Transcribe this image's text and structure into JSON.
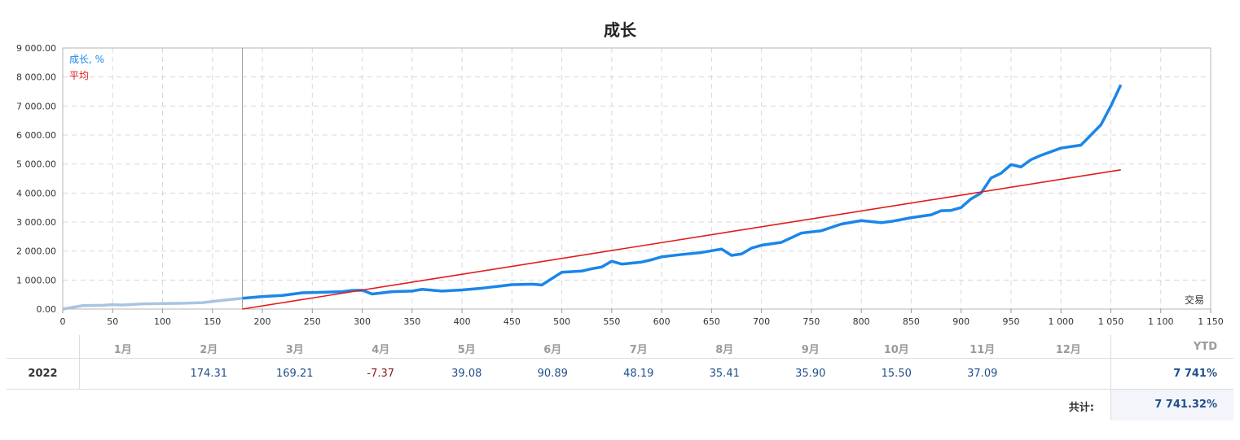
{
  "chart_data": {
    "type": "line",
    "title": "成长",
    "xlabel": "交易",
    "xlim": [
      0,
      1150
    ],
    "ylim": [
      0,
      9000
    ],
    "x_ticks": [
      0,
      50,
      100,
      150,
      200,
      250,
      300,
      350,
      400,
      450,
      500,
      550,
      600,
      650,
      700,
      750,
      800,
      850,
      900,
      950,
      1000,
      1050,
      1100,
      1150
    ],
    "x_tick_labels": [
      "0",
      "50",
      "100",
      "150",
      "200",
      "250",
      "300",
      "350",
      "400",
      "450",
      "500",
      "550",
      "600",
      "650",
      "700",
      "750",
      "800",
      "850",
      "900",
      "950",
      "1 000",
      "1 050",
      "1 100",
      "1 150"
    ],
    "y_ticks": [
      0,
      1000,
      2000,
      3000,
      4000,
      5000,
      6000,
      7000,
      8000,
      9000
    ],
    "y_tick_labels": [
      "0.00",
      "1 000.00",
      "2 000.00",
      "3 000.00",
      "4 000.00",
      "5 000.00",
      "6 000.00",
      "7 000.00",
      "8 000.00",
      "9 000.00"
    ],
    "grid": true,
    "legend_position": "top-left",
    "period_divider_x": 180,
    "series": [
      {
        "name": "成长, %",
        "color": "#1a86e8",
        "prior_period_color": "#a9c4e0",
        "x": [
          0,
          10,
          20,
          40,
          50,
          60,
          80,
          100,
          120,
          140,
          160,
          180,
          200,
          220,
          240,
          260,
          280,
          290,
          300,
          310,
          330,
          350,
          360,
          380,
          400,
          420,
          440,
          450,
          470,
          480,
          500,
          520,
          530,
          540,
          550,
          560,
          580,
          590,
          600,
          620,
          640,
          660,
          670,
          680,
          690,
          700,
          720,
          740,
          760,
          780,
          800,
          820,
          830,
          850,
          870,
          880,
          890,
          900,
          910,
          920,
          930,
          940,
          950,
          960,
          970,
          980,
          1000,
          1010,
          1020,
          1030,
          1040,
          1050,
          1060
        ],
        "y": [
          0,
          60,
          120,
          130,
          150,
          140,
          180,
          190,
          200,
          220,
          300,
          370,
          430,
          470,
          560,
          580,
          600,
          640,
          650,
          520,
          600,
          620,
          680,
          620,
          660,
          720,
          800,
          840,
          860,
          830,
          1270,
          1310,
          1390,
          1450,
          1650,
          1550,
          1620,
          1700,
          1800,
          1880,
          1950,
          2070,
          1850,
          1900,
          2100,
          2200,
          2300,
          2620,
          2700,
          2930,
          3050,
          2980,
          3020,
          3150,
          3250,
          3390,
          3400,
          3500,
          3800,
          4000,
          4520,
          4680,
          4980,
          4900,
          5150,
          5300,
          5550,
          5600,
          5650,
          6000,
          6350,
          7000,
          7730
        ]
      },
      {
        "name": "平均",
        "color": "#e11b1b",
        "x": [
          180,
          1060
        ],
        "y": [
          0,
          4800
        ]
      }
    ]
  },
  "table": {
    "months": [
      "1月",
      "2月",
      "3月",
      "4月",
      "5月",
      "6月",
      "7月",
      "8月",
      "9月",
      "10月",
      "11月",
      "12月"
    ],
    "ytd_header": "YTD",
    "rows": [
      {
        "year": "2022",
        "values": [
          "",
          "174.31",
          "169.21",
          "-7.37",
          "39.08",
          "90.89",
          "48.19",
          "35.41",
          "35.90",
          "15.50",
          "37.09",
          ""
        ],
        "ytd": "7 741%"
      }
    ],
    "total_label": "共计:",
    "total_value": "7 741.32%"
  }
}
